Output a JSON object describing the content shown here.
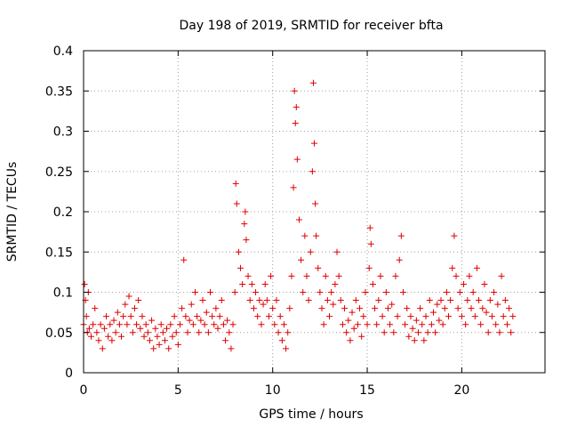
{
  "chart_data": {
    "type": "scatter",
    "title": "Day 198 of 2019, SRMTID for receiver bfta",
    "xlabel": "GPS time / hours",
    "ylabel": "SRMTID / TECUs",
    "xlim": [
      0,
      24.4
    ],
    "ylim": [
      0,
      0.4
    ],
    "xticks": [
      0,
      5,
      10,
      15,
      20
    ],
    "xtick_labels": [
      "0",
      "5",
      "10",
      "15",
      "20"
    ],
    "yticks": [
      0,
      0.05,
      0.1,
      0.15,
      0.2,
      0.25,
      0.3,
      0.35,
      0.4
    ],
    "ytick_labels": [
      "0",
      "0.05",
      "0.1",
      "0.15",
      "0.2",
      "0.25",
      "0.3",
      "0.35",
      "0.4"
    ],
    "grid": true,
    "marker": "+",
    "series": [
      {
        "name": "SRMTID",
        "color": "#e00000",
        "points": [
          [
            0.0,
            0.06
          ],
          [
            0.05,
            0.11
          ],
          [
            0.1,
            0.09
          ],
          [
            0.15,
            0.07
          ],
          [
            0.2,
            0.05
          ],
          [
            0.25,
            0.1
          ],
          [
            0.3,
            0.055
          ],
          [
            0.4,
            0.045
          ],
          [
            0.5,
            0.06
          ],
          [
            0.6,
            0.08
          ],
          [
            0.7,
            0.05
          ],
          [
            0.8,
            0.04
          ],
          [
            0.9,
            0.06
          ],
          [
            1.0,
            0.03
          ],
          [
            1.1,
            0.055
          ],
          [
            1.2,
            0.07
          ],
          [
            1.3,
            0.045
          ],
          [
            1.4,
            0.06
          ],
          [
            1.5,
            0.04
          ],
          [
            1.6,
            0.065
          ],
          [
            1.7,
            0.05
          ],
          [
            1.8,
            0.075
          ],
          [
            1.9,
            0.06
          ],
          [
            2.0,
            0.045
          ],
          [
            2.1,
            0.07
          ],
          [
            2.2,
            0.085
          ],
          [
            2.3,
            0.06
          ],
          [
            2.4,
            0.095
          ],
          [
            2.5,
            0.07
          ],
          [
            2.6,
            0.05
          ],
          [
            2.7,
            0.08
          ],
          [
            2.8,
            0.06
          ],
          [
            2.9,
            0.09
          ],
          [
            3.0,
            0.055
          ],
          [
            3.1,
            0.07
          ],
          [
            3.2,
            0.045
          ],
          [
            3.3,
            0.06
          ],
          [
            3.4,
            0.05
          ],
          [
            3.5,
            0.04
          ],
          [
            3.6,
            0.065
          ],
          [
            3.7,
            0.03
          ],
          [
            3.8,
            0.055
          ],
          [
            3.9,
            0.045
          ],
          [
            4.0,
            0.035
          ],
          [
            4.1,
            0.06
          ],
          [
            4.2,
            0.05
          ],
          [
            4.3,
            0.04
          ],
          [
            4.4,
            0.055
          ],
          [
            4.5,
            0.03
          ],
          [
            4.6,
            0.06
          ],
          [
            4.7,
            0.045
          ],
          [
            4.8,
            0.07
          ],
          [
            4.9,
            0.05
          ],
          [
            5.0,
            0.035
          ],
          [
            5.1,
            0.06
          ],
          [
            5.2,
            0.08
          ],
          [
            5.3,
            0.14
          ],
          [
            5.4,
            0.07
          ],
          [
            5.5,
            0.05
          ],
          [
            5.6,
            0.065
          ],
          [
            5.7,
            0.085
          ],
          [
            5.8,
            0.06
          ],
          [
            5.9,
            0.1
          ],
          [
            6.0,
            0.07
          ],
          [
            6.1,
            0.05
          ],
          [
            6.2,
            0.065
          ],
          [
            6.3,
            0.09
          ],
          [
            6.4,
            0.06
          ],
          [
            6.5,
            0.075
          ],
          [
            6.6,
            0.05
          ],
          [
            6.7,
            0.1
          ],
          [
            6.8,
            0.07
          ],
          [
            6.9,
            0.06
          ],
          [
            7.0,
            0.08
          ],
          [
            7.1,
            0.055
          ],
          [
            7.2,
            0.07
          ],
          [
            7.3,
            0.09
          ],
          [
            7.4,
            0.06
          ],
          [
            7.5,
            0.04
          ],
          [
            7.6,
            0.065
          ],
          [
            7.7,
            0.05
          ],
          [
            7.8,
            0.03
          ],
          [
            7.9,
            0.06
          ],
          [
            8.0,
            0.1
          ],
          [
            8.05,
            0.235
          ],
          [
            8.1,
            0.21
          ],
          [
            8.2,
            0.15
          ],
          [
            8.3,
            0.13
          ],
          [
            8.4,
            0.11
          ],
          [
            8.5,
            0.185
          ],
          [
            8.55,
            0.2
          ],
          [
            8.6,
            0.165
          ],
          [
            8.7,
            0.12
          ],
          [
            8.8,
            0.09
          ],
          [
            8.9,
            0.11
          ],
          [
            9.0,
            0.08
          ],
          [
            9.1,
            0.1
          ],
          [
            9.2,
            0.07
          ],
          [
            9.3,
            0.09
          ],
          [
            9.4,
            0.06
          ],
          [
            9.5,
            0.085
          ],
          [
            9.6,
            0.11
          ],
          [
            9.7,
            0.09
          ],
          [
            9.8,
            0.07
          ],
          [
            9.9,
            0.12
          ],
          [
            10.0,
            0.08
          ],
          [
            10.1,
            0.06
          ],
          [
            10.2,
            0.09
          ],
          [
            10.3,
            0.05
          ],
          [
            10.4,
            0.07
          ],
          [
            10.5,
            0.04
          ],
          [
            10.6,
            0.06
          ],
          [
            10.7,
            0.03
          ],
          [
            10.8,
            0.05
          ],
          [
            10.9,
            0.08
          ],
          [
            11.0,
            0.12
          ],
          [
            11.1,
            0.23
          ],
          [
            11.15,
            0.35
          ],
          [
            11.2,
            0.31
          ],
          [
            11.25,
            0.33
          ],
          [
            11.3,
            0.265
          ],
          [
            11.4,
            0.19
          ],
          [
            11.5,
            0.14
          ],
          [
            11.6,
            0.1
          ],
          [
            11.7,
            0.17
          ],
          [
            11.8,
            0.12
          ],
          [
            11.9,
            0.09
          ],
          [
            12.0,
            0.15
          ],
          [
            12.1,
            0.25
          ],
          [
            12.15,
            0.36
          ],
          [
            12.2,
            0.285
          ],
          [
            12.25,
            0.21
          ],
          [
            12.3,
            0.17
          ],
          [
            12.4,
            0.13
          ],
          [
            12.5,
            0.1
          ],
          [
            12.6,
            0.08
          ],
          [
            12.7,
            0.06
          ],
          [
            12.8,
            0.12
          ],
          [
            12.9,
            0.09
          ],
          [
            13.0,
            0.07
          ],
          [
            13.1,
            0.1
          ],
          [
            13.2,
            0.085
          ],
          [
            13.3,
            0.11
          ],
          [
            13.4,
            0.15
          ],
          [
            13.5,
            0.12
          ],
          [
            13.6,
            0.09
          ],
          [
            13.7,
            0.06
          ],
          [
            13.8,
            0.08
          ],
          [
            13.9,
            0.05
          ],
          [
            14.0,
            0.065
          ],
          [
            14.1,
            0.04
          ],
          [
            14.2,
            0.075
          ],
          [
            14.3,
            0.055
          ],
          [
            14.4,
            0.09
          ],
          [
            14.5,
            0.06
          ],
          [
            14.6,
            0.08
          ],
          [
            14.7,
            0.045
          ],
          [
            14.8,
            0.07
          ],
          [
            14.9,
            0.1
          ],
          [
            15.0,
            0.06
          ],
          [
            15.1,
            0.13
          ],
          [
            15.15,
            0.18
          ],
          [
            15.2,
            0.16
          ],
          [
            15.3,
            0.11
          ],
          [
            15.4,
            0.08
          ],
          [
            15.5,
            0.06
          ],
          [
            15.6,
            0.09
          ],
          [
            15.7,
            0.12
          ],
          [
            15.8,
            0.07
          ],
          [
            15.9,
            0.05
          ],
          [
            16.0,
            0.1
          ],
          [
            16.1,
            0.08
          ],
          [
            16.2,
            0.06
          ],
          [
            16.3,
            0.085
          ],
          [
            16.4,
            0.05
          ],
          [
            16.5,
            0.12
          ],
          [
            16.6,
            0.07
          ],
          [
            16.7,
            0.14
          ],
          [
            16.8,
            0.17
          ],
          [
            16.9,
            0.1
          ],
          [
            17.0,
            0.06
          ],
          [
            17.1,
            0.08
          ],
          [
            17.2,
            0.045
          ],
          [
            17.3,
            0.07
          ],
          [
            17.4,
            0.055
          ],
          [
            17.5,
            0.04
          ],
          [
            17.6,
            0.065
          ],
          [
            17.7,
            0.05
          ],
          [
            17.8,
            0.08
          ],
          [
            17.9,
            0.06
          ],
          [
            18.0,
            0.04
          ],
          [
            18.1,
            0.07
          ],
          [
            18.2,
            0.05
          ],
          [
            18.3,
            0.09
          ],
          [
            18.4,
            0.06
          ],
          [
            18.5,
            0.075
          ],
          [
            18.6,
            0.05
          ],
          [
            18.7,
            0.085
          ],
          [
            18.8,
            0.065
          ],
          [
            18.9,
            0.09
          ],
          [
            19.0,
            0.06
          ],
          [
            19.1,
            0.08
          ],
          [
            19.2,
            0.1
          ],
          [
            19.3,
            0.07
          ],
          [
            19.4,
            0.09
          ],
          [
            19.5,
            0.13
          ],
          [
            19.6,
            0.17
          ],
          [
            19.7,
            0.12
          ],
          [
            19.8,
            0.08
          ],
          [
            19.9,
            0.1
          ],
          [
            20.0,
            0.07
          ],
          [
            20.1,
            0.11
          ],
          [
            20.2,
            0.06
          ],
          [
            20.3,
            0.09
          ],
          [
            20.4,
            0.12
          ],
          [
            20.5,
            0.08
          ],
          [
            20.6,
            0.1
          ],
          [
            20.7,
            0.07
          ],
          [
            20.8,
            0.13
          ],
          [
            20.9,
            0.09
          ],
          [
            21.0,
            0.06
          ],
          [
            21.1,
            0.08
          ],
          [
            21.2,
            0.11
          ],
          [
            21.3,
            0.075
          ],
          [
            21.4,
            0.05
          ],
          [
            21.5,
            0.09
          ],
          [
            21.6,
            0.07
          ],
          [
            21.7,
            0.1
          ],
          [
            21.8,
            0.06
          ],
          [
            21.9,
            0.085
          ],
          [
            22.0,
            0.05
          ],
          [
            22.1,
            0.12
          ],
          [
            22.2,
            0.07
          ],
          [
            22.3,
            0.09
          ],
          [
            22.4,
            0.06
          ],
          [
            22.5,
            0.08
          ],
          [
            22.6,
            0.05
          ],
          [
            22.7,
            0.07
          ]
        ]
      }
    ]
  }
}
